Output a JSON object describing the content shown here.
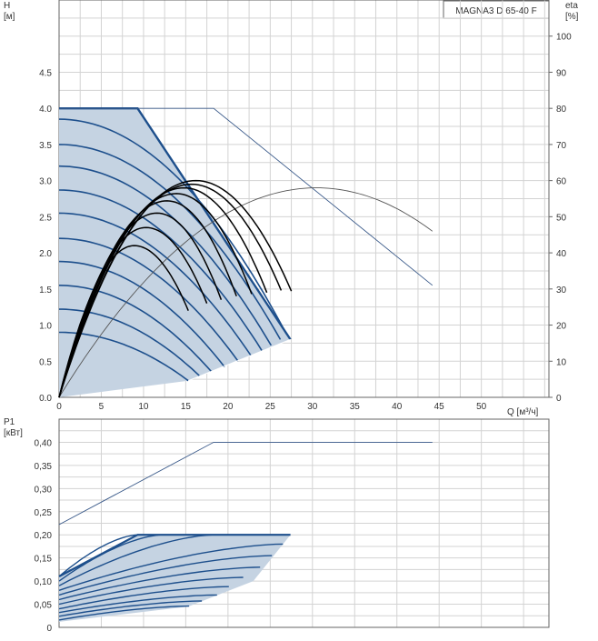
{
  "chart_data": [
    {
      "type": "line",
      "title": "MAGNA3 D 65-40 F",
      "xlabel": "Q [м³/ч]",
      "ylabel": "H",
      "ylabel_unit": "[м]",
      "y2label": "eta",
      "y2label_unit": "[%]",
      "xlim": [
        0,
        58
      ],
      "ylim": [
        0,
        5.5
      ],
      "y2lim": [
        0,
        110
      ],
      "x_ticks": [
        "0",
        "5",
        "10",
        "15",
        "20",
        "25",
        "30",
        "35",
        "40",
        "45",
        "50"
      ],
      "y_ticks": [
        "0.0",
        "0.5",
        "1.0",
        "1.5",
        "2.0",
        "2.5",
        "3.0",
        "3.5",
        "4.0",
        "4.5"
      ],
      "y2_ticks": [
        "0",
        "10",
        "20",
        "30",
        "40",
        "50",
        "60",
        "70",
        "80",
        "90",
        "100"
      ],
      "grid": true,
      "colors": {
        "envelope_fill": "#c5d3e2",
        "envelope_edge": "#1d4f8c",
        "curve": "#1d4f8c",
        "efficiency": "#000000",
        "ref": "#3a5a8a",
        "eta_ref": "#555555"
      },
      "envelope": [
        [
          0,
          4.0
        ],
        [
          9.3,
          4.0
        ],
        [
          27.4,
          0.8
        ],
        [
          15.3,
          0.23
        ],
        [
          0,
          0
        ]
      ],
      "pump_curves": [
        {
          "h0": 3.85,
          "xe": 26.9,
          "he": 0.88
        },
        {
          "h0": 3.5,
          "xe": 26.2,
          "he": 0.8
        },
        {
          "h0": 3.2,
          "xe": 25.1,
          "he": 0.72
        },
        {
          "h0": 2.87,
          "xe": 24.0,
          "he": 0.65
        },
        {
          "h0": 2.55,
          "xe": 22.7,
          "he": 0.58
        },
        {
          "h0": 2.2,
          "xe": 21.2,
          "he": 0.5
        },
        {
          "h0": 1.88,
          "xe": 19.6,
          "he": 0.42
        },
        {
          "h0": 1.55,
          "xe": 18.0,
          "he": 0.36
        },
        {
          "h0": 1.22,
          "xe": 16.6,
          "he": 0.3
        },
        {
          "h0": 0.9,
          "xe": 15.3,
          "he": 0.23
        }
      ],
      "efficiency_curves": [
        {
          "peak_q": 16.2,
          "peak_h": 3.0,
          "end_q": 27.5,
          "end_h": 1.47
        },
        {
          "peak_q": 15.7,
          "peak_h": 2.95,
          "end_q": 26.3,
          "end_h": 1.48
        },
        {
          "peak_q": 14.8,
          "peak_h": 2.9,
          "end_q": 24.6,
          "end_h": 1.45
        },
        {
          "peak_q": 13.9,
          "peak_h": 2.82,
          "end_q": 22.8,
          "end_h": 1.43
        },
        {
          "peak_q": 12.8,
          "peak_h": 2.72,
          "end_q": 21.0,
          "end_h": 1.4
        },
        {
          "peak_q": 11.6,
          "peak_h": 2.55,
          "end_q": 19.2,
          "end_h": 1.35
        },
        {
          "peak_q": 10.3,
          "peak_h": 2.35,
          "end_q": 17.5,
          "end_h": 1.3
        },
        {
          "peak_q": 8.9,
          "peak_h": 2.1,
          "end_q": 15.3,
          "end_h": 1.2
        }
      ],
      "max_curve_reference": [
        [
          0,
          4.0
        ],
        [
          18.3,
          4.0
        ],
        [
          44.2,
          1.55
        ]
      ],
      "eta_curve": {
        "unit": "%",
        "peak_q": 30.5,
        "peak_eta": 58,
        "end_q": 44.2,
        "end_eta": 46
      }
    },
    {
      "type": "line",
      "ylabel": "P1",
      "ylabel_unit": "[кВт]",
      "xlim": [
        0,
        58
      ],
      "ylim": [
        0,
        0.45
      ],
      "y_ticks": [
        "0",
        "0,05",
        "0,10",
        "0,15",
        "0,20",
        "0,25",
        "0,30",
        "0,35",
        "0,40"
      ],
      "grid": true,
      "envelope": [
        [
          0,
          0.11
        ],
        [
          9.3,
          0.2
        ],
        [
          27.4,
          0.2
        ],
        [
          23.0,
          0.1
        ],
        [
          15.3,
          0.045
        ],
        [
          0,
          0.012
        ]
      ],
      "power_curves": [
        {
          "y0": 0.11,
          "xe": 9.3,
          "ye": 0.2
        },
        {
          "y0": 0.1,
          "xe": 12.2,
          "ye": 0.2
        },
        {
          "y0": 0.09,
          "xe": 18.3,
          "ye": 0.2
        },
        {
          "y0": 0.08,
          "xe": 26.5,
          "ye": 0.18
        },
        {
          "y0": 0.07,
          "xe": 25.2,
          "ye": 0.155
        },
        {
          "y0": 0.06,
          "xe": 23.8,
          "ye": 0.13
        },
        {
          "y0": 0.05,
          "xe": 21.8,
          "ye": 0.108
        },
        {
          "y0": 0.04,
          "xe": 20.1,
          "ye": 0.088
        },
        {
          "y0": 0.032,
          "xe": 18.7,
          "ye": 0.07
        },
        {
          "y0": 0.024,
          "xe": 16.9,
          "ye": 0.057
        },
        {
          "y0": 0.016,
          "xe": 15.4,
          "ye": 0.046
        }
      ],
      "reference": [
        [
          0,
          0.222
        ],
        [
          18.3,
          0.4
        ],
        [
          44.2,
          0.4
        ]
      ]
    }
  ]
}
